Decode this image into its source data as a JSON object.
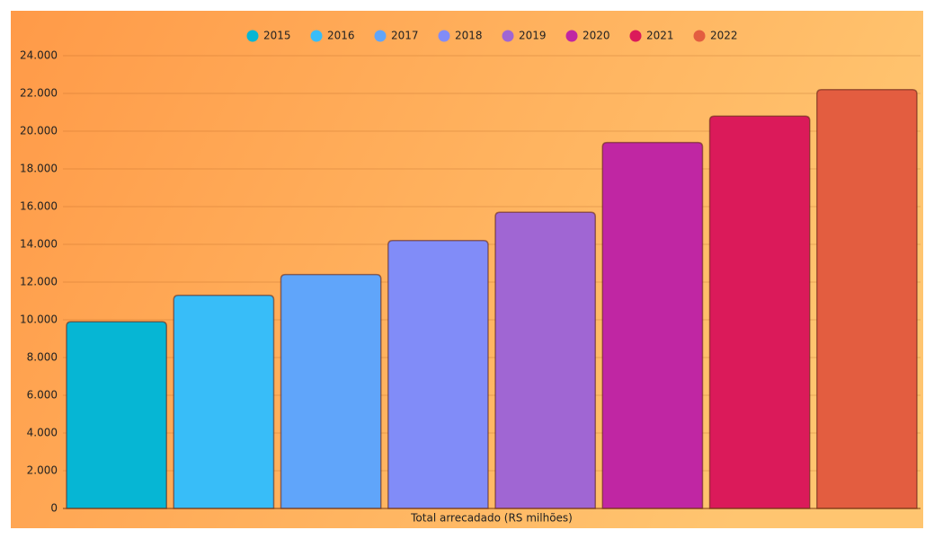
{
  "chart_data": {
    "type": "bar",
    "categories": [
      "Total arrecadado (RS milhões)"
    ],
    "series": [
      {
        "name": "2015",
        "color": "#06b6d4",
        "values": [
          9900
        ]
      },
      {
        "name": "2016",
        "color": "#38bdf8",
        "values": [
          11300
        ]
      },
      {
        "name": "2017",
        "color": "#60a5fa",
        "values": [
          12400
        ]
      },
      {
        "name": "2018",
        "color": "#818cf8",
        "values": [
          14200
        ]
      },
      {
        "name": "2019",
        "color": "#a066d3",
        "values": [
          15700
        ]
      },
      {
        "name": "2020",
        "color": "#c026a3",
        "values": [
          19400
        ]
      },
      {
        "name": "2021",
        "color": "#db1a5a",
        "values": [
          20800
        ]
      },
      {
        "name": "2022",
        "color": "#e35d40",
        "values": [
          22200
        ]
      }
    ],
    "ylim": [
      0,
      24000
    ],
    "yticks": [
      0,
      {
        "value": 2000,
        "label": "2.000"
      },
      {
        "value": 4000,
        "label": "4.000"
      },
      {
        "value": 6000,
        "label": "6.000"
      },
      {
        "value": 8000,
        "label": "8.000"
      },
      {
        "value": 10000,
        "label": "10.000"
      },
      {
        "value": 12000,
        "label": "12.000"
      },
      {
        "value": 14000,
        "label": "14.000"
      },
      {
        "value": 16000,
        "label": "16.000"
      },
      {
        "value": 18000,
        "label": "18.000"
      },
      {
        "value": 20000,
        "label": "20.000"
      },
      {
        "value": 22000,
        "label": "22.000"
      },
      {
        "value": 24000,
        "label": "24.000"
      }
    ],
    "grid": true,
    "legend": "top"
  }
}
